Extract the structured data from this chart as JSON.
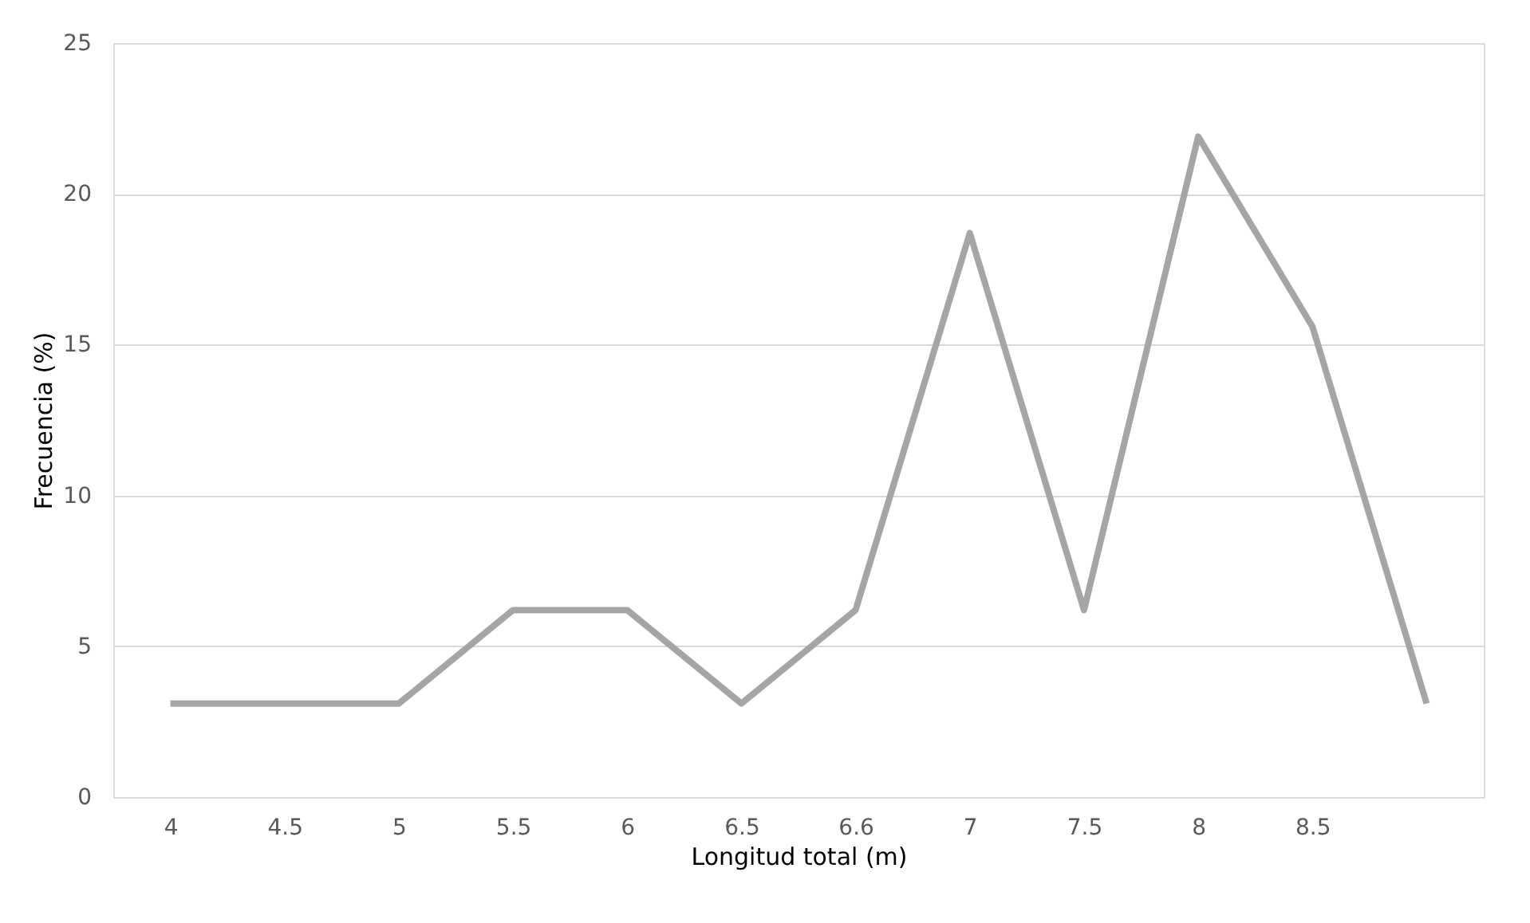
{
  "chart_data": {
    "type": "line",
    "xlabel": "Longitud total (m)",
    "ylabel": "Frecuencia (%)",
    "categories": [
      "4",
      "4.5",
      "5",
      "5.5",
      "6",
      "6.5",
      "6.6",
      "7",
      "7.5",
      "8",
      "8.5",
      null
    ],
    "series": [
      {
        "color": "#a5a5a5",
        "values": [
          3.1,
          3.1,
          3.1,
          6.2,
          6.2,
          3.1,
          6.2,
          18.7,
          6.2,
          21.9,
          15.6,
          3.1
        ]
      }
    ],
    "ylim": [
      0,
      25
    ],
    "yticks": [
      0,
      5,
      10,
      15,
      20,
      25
    ],
    "grid": "y",
    "marker": "none",
    "line_style": "solid"
  }
}
